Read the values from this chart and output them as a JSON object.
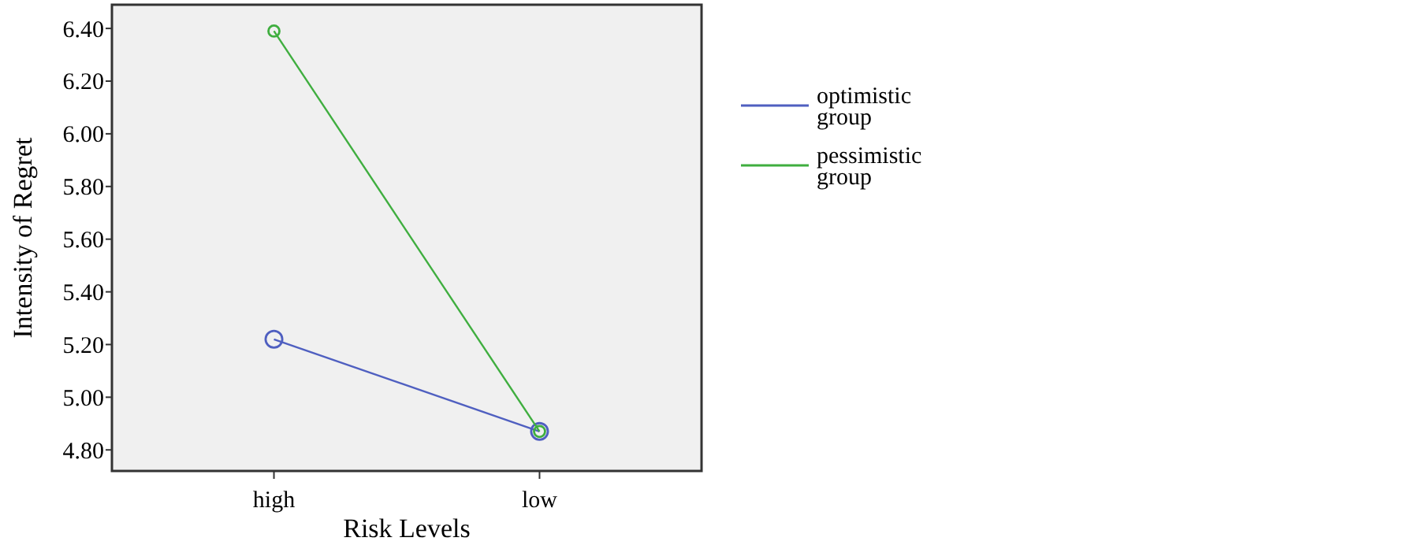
{
  "chart_data": {
    "type": "line",
    "xlabel": "Risk Levels",
    "ylabel": "Intensity of Regret",
    "categories": [
      "high",
      "low"
    ],
    "series": [
      {
        "name": "optimistic group",
        "color": "#4f5fc0",
        "values": [
          5.22,
          4.87
        ]
      },
      {
        "name": "pessimistic group",
        "color": "#3fae3f",
        "values": [
          6.39,
          4.87
        ]
      }
    ],
    "ylim": [
      4.72,
      6.49
    ],
    "yticks": [
      {
        "value": 4.8,
        "label": "4.80"
      },
      {
        "value": 5.0,
        "label": "5.00"
      },
      {
        "value": 5.2,
        "label": "5.20"
      },
      {
        "value": 5.4,
        "label": "5.40"
      },
      {
        "value": 5.6,
        "label": "5.60"
      },
      {
        "value": 5.8,
        "label": "5.80"
      },
      {
        "value": 6.0,
        "label": "6.00"
      },
      {
        "value": 6.2,
        "label": "6.20"
      },
      {
        "value": 6.4,
        "label": "6.40"
      }
    ],
    "grid": false,
    "legend": "right",
    "marker": "circle",
    "line_style": "solid"
  }
}
